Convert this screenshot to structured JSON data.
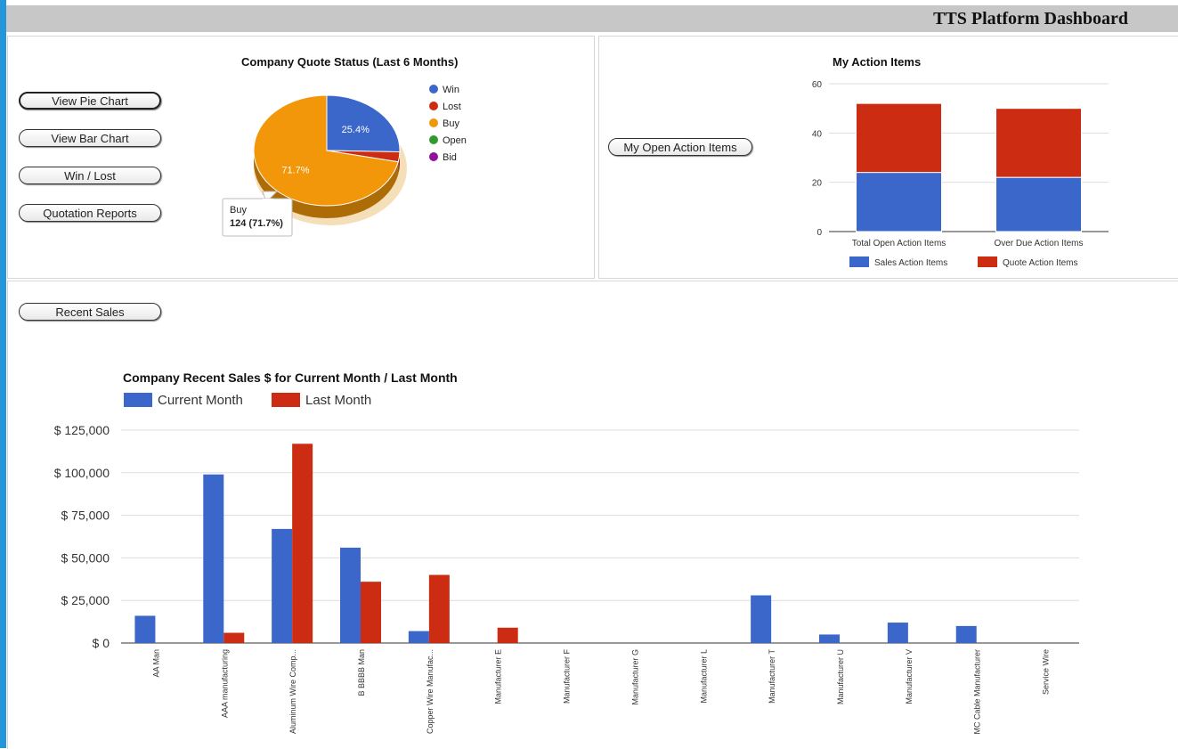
{
  "header": {
    "title": "TTS Platform Dashboard"
  },
  "quote_panel": {
    "buttons": [
      "View Pie Chart",
      "View Bar Chart",
      "Win / Lost",
      "Quotation Reports"
    ]
  },
  "action_panel": {
    "button": "My Open Action Items"
  },
  "sales_panel": {
    "button": "Recent Sales"
  },
  "colors": {
    "blue": "#3a67c9",
    "red": "#cc2d12",
    "orange": "#f2960a",
    "green": "#2f9b2f",
    "purple": "#92109a"
  },
  "chart_data": [
    {
      "type": "pie",
      "title": "Company Quote Status (Last 6 Months)",
      "labels": [
        "Win",
        "Lost",
        "Buy",
        "Open",
        "Bid"
      ],
      "values": [
        25.4,
        2.9,
        71.7,
        0,
        0
      ],
      "slice_labels": [
        "25.4%",
        "",
        "71.7%",
        "",
        ""
      ],
      "legend": "right",
      "tooltip": {
        "label": "Buy",
        "value": "124 (71.7%)"
      }
    },
    {
      "type": "bar",
      "title": "My Action Items",
      "stacked": true,
      "categories": [
        "Total Open Action Items",
        "Over Due Action Items"
      ],
      "series": [
        {
          "name": "Sales Action Items",
          "values": [
            24,
            22
          ]
        },
        {
          "name": "Quote Action Items",
          "values": [
            28,
            28
          ]
        }
      ],
      "ylim": [
        0,
        60
      ],
      "yticks": [
        "0",
        "20",
        "40",
        "60"
      ],
      "legend": "bottom",
      "grid": true
    },
    {
      "type": "bar",
      "title": "Company Recent Sales $ for Current Month / Last Month",
      "categories": [
        "AA Man",
        "AAA manufacturing",
        "Aluminum Wire Comp...",
        "B BBBB Man",
        "Copper Wire Manufac...",
        "Manufacturer E",
        "Manufacturer F",
        "Manufacturer G",
        "Manufacturer L",
        "Manufacturer T",
        "Manufacturer U",
        "Manufacturer V",
        "MC Cable Manufacturer",
        "Service Wire"
      ],
      "series": [
        {
          "name": "Current Month",
          "values": [
            16000,
            99000,
            67000,
            56000,
            7000,
            0,
            0,
            0,
            0,
            28000,
            5000,
            12000,
            10000,
            0
          ]
        },
        {
          "name": "Last Month",
          "values": [
            0,
            6000,
            117000,
            36000,
            40000,
            9000,
            0,
            0,
            0,
            0,
            0,
            0,
            0,
            0
          ]
        }
      ],
      "ylim": [
        0,
        125000
      ],
      "yticks": [
        "$ 0",
        "$ 25,000",
        "$ 50,000",
        "$ 75,000",
        "$ 100,000",
        "$ 125,000"
      ],
      "legend": "top",
      "grid": true
    }
  ]
}
